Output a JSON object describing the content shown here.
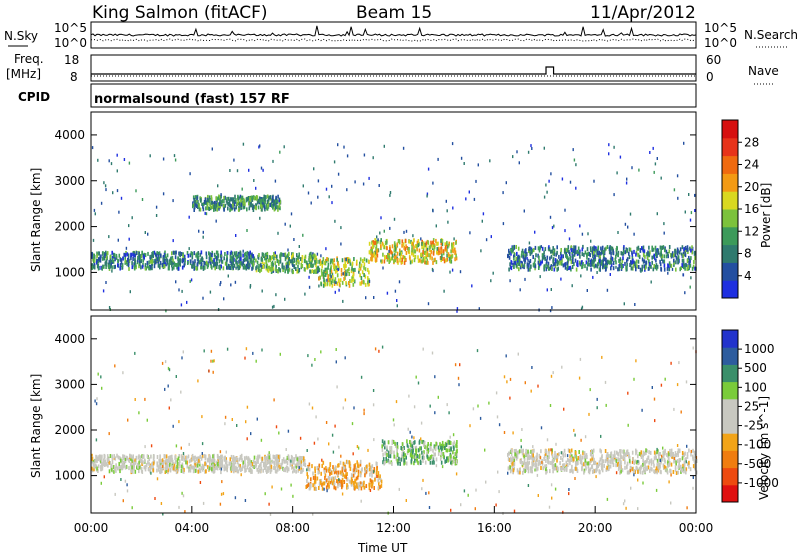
{
  "header": {
    "station": "King Salmon (fitACF)",
    "beam": "Beam 15",
    "date": "11/Apr/2012"
  },
  "top_panels": {
    "noise": {
      "left_label": "N.Sky",
      "right_label": "N.Search",
      "left_ticks": [
        "10^5",
        "10^0"
      ],
      "right_ticks": [
        "10^5",
        "10^0"
      ]
    },
    "freq": {
      "left_label_line1": "Freq.",
      "left_label_line2": "[MHz]",
      "right_label": "Nave",
      "left_ticks": [
        "18",
        "8"
      ],
      "right_ticks": [
        "60",
        "0"
      ]
    },
    "cpid": {
      "label": "CPID",
      "mode": "normalsound (fast) 157 RF"
    }
  },
  "colors": {
    "power_scale": [
      "#1e2fe0",
      "#234fa0",
      "#2f7a6e",
      "#3c9a5a",
      "#7cc23c",
      "#d9d820",
      "#f39a14",
      "#ef6a10",
      "#e7331a",
      "#d60f0f"
    ],
    "velocity_scale": [
      "#e01010",
      "#ee4a10",
      "#f07d10",
      "#f2a418",
      "#c8c8c0",
      "#c8c8c0",
      "#7acb3a",
      "#3a8f6a",
      "#2d5c9e",
      "#2233cc"
    ],
    "groundscatter": "#c8c8c0"
  },
  "chart_data": [
    {
      "type": "heatmap",
      "name": "power",
      "ylabel": "Slant Range [km]",
      "xlim": [
        "00:00",
        "24:00"
      ],
      "ylim": [
        180,
        4500
      ],
      "y_ticks": [
        "1000",
        "2000",
        "3000",
        "4000"
      ],
      "colorbar": {
        "label": "Power [dB]",
        "range": [
          0,
          32
        ],
        "ticks": [
          "4",
          "8",
          "12",
          "16",
          "20",
          "24",
          "28"
        ]
      },
      "scatter_regions": [
        {
          "t_start": 0.0,
          "t_end": 6.5,
          "range_center": 1300,
          "range_halfwidth": 180,
          "value": 8
        },
        {
          "t_start": 6.5,
          "t_end": 9.0,
          "range_center": 1250,
          "range_halfwidth": 200,
          "value": 12
        },
        {
          "t_start": 9.0,
          "t_end": 11.0,
          "range_center": 1050,
          "range_halfwidth": 300,
          "value": 16
        },
        {
          "t_start": 11.0,
          "t_end": 14.5,
          "range_center": 1500,
          "range_halfwidth": 250,
          "value": 18
        },
        {
          "t_start": 16.5,
          "t_end": 24.0,
          "range_center": 1350,
          "range_halfwidth": 250,
          "value": 8
        },
        {
          "t_start": 4.0,
          "t_end": 7.5,
          "range_center": 2550,
          "range_halfwidth": 150,
          "value": 10
        }
      ]
    },
    {
      "type": "heatmap",
      "name": "velocity",
      "ylabel": "Slant Range [km]",
      "xlabel": "Time UT",
      "xlim": [
        "00:00",
        "24:00"
      ],
      "ylim": [
        180,
        4500
      ],
      "x_ticks": [
        "00:00",
        "04:00",
        "08:00",
        "12:00",
        "16:00",
        "20:00",
        "00:00"
      ],
      "y_ticks": [
        "1000",
        "2000",
        "3000",
        "4000"
      ],
      "colorbar": {
        "label": "Velocity [m s^-1]",
        "ticks": [
          "1000",
          "500",
          "100",
          "25",
          "-25",
          "-100",
          "-500",
          "-1000"
        ]
      },
      "scatter_regions": [
        {
          "t_start": 0.0,
          "t_end": 8.5,
          "range_center": 1300,
          "range_halfwidth": 180,
          "value": 0
        },
        {
          "t_start": 8.5,
          "t_end": 11.5,
          "range_center": 1050,
          "range_halfwidth": 300,
          "value": -300
        },
        {
          "t_start": 11.5,
          "t_end": 14.5,
          "range_center": 1550,
          "range_halfwidth": 250,
          "value": 300
        },
        {
          "t_start": 16.5,
          "t_end": 24.0,
          "range_center": 1350,
          "range_halfwidth": 250,
          "value": 0
        }
      ]
    }
  ]
}
